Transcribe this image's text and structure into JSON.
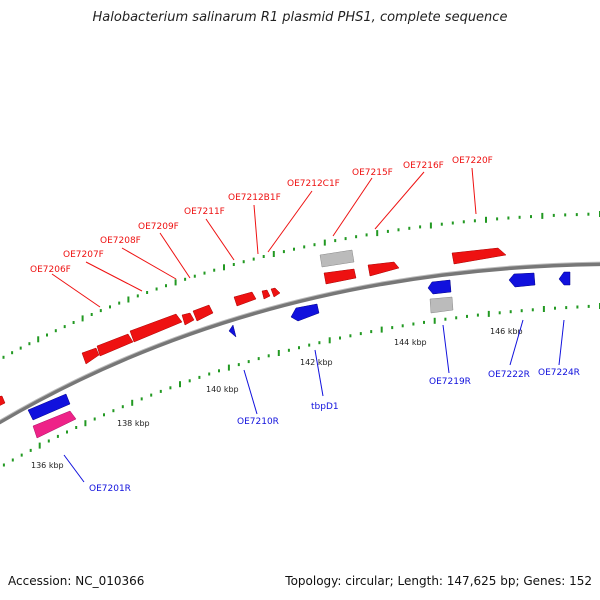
{
  "header": {
    "title": "Halobacterium salinarum R1 plasmid PHS1, complete sequence"
  },
  "footer": {
    "accession": "Accession: NC_010366",
    "summary": "Topology: circular; Length: 147,625 bp; Genes: 152"
  },
  "colors": {
    "forward": "#ee1111",
    "reverse": "#1111dd",
    "other": "#bbbbbb",
    "pink": "#ee2288",
    "tick": "#229922",
    "backbone": "#888888"
  },
  "ticks": [
    "136 kbp",
    "138 kbp",
    "140 kbp",
    "142 kbp",
    "144 kbp",
    "146 kbp"
  ],
  "forward_labels": [
    "OE7206F",
    "OE7207F",
    "OE7208F",
    "OE7209F",
    "OE7211F",
    "OE7212B1F",
    "OE7212C1F",
    "OE7215F",
    "OE7216F",
    "OE7220F"
  ],
  "reverse_labels": [
    "OE7201R",
    "OE7210R",
    "tbpD1",
    "OE7219R",
    "OE7222R",
    "OE7224R"
  ]
}
